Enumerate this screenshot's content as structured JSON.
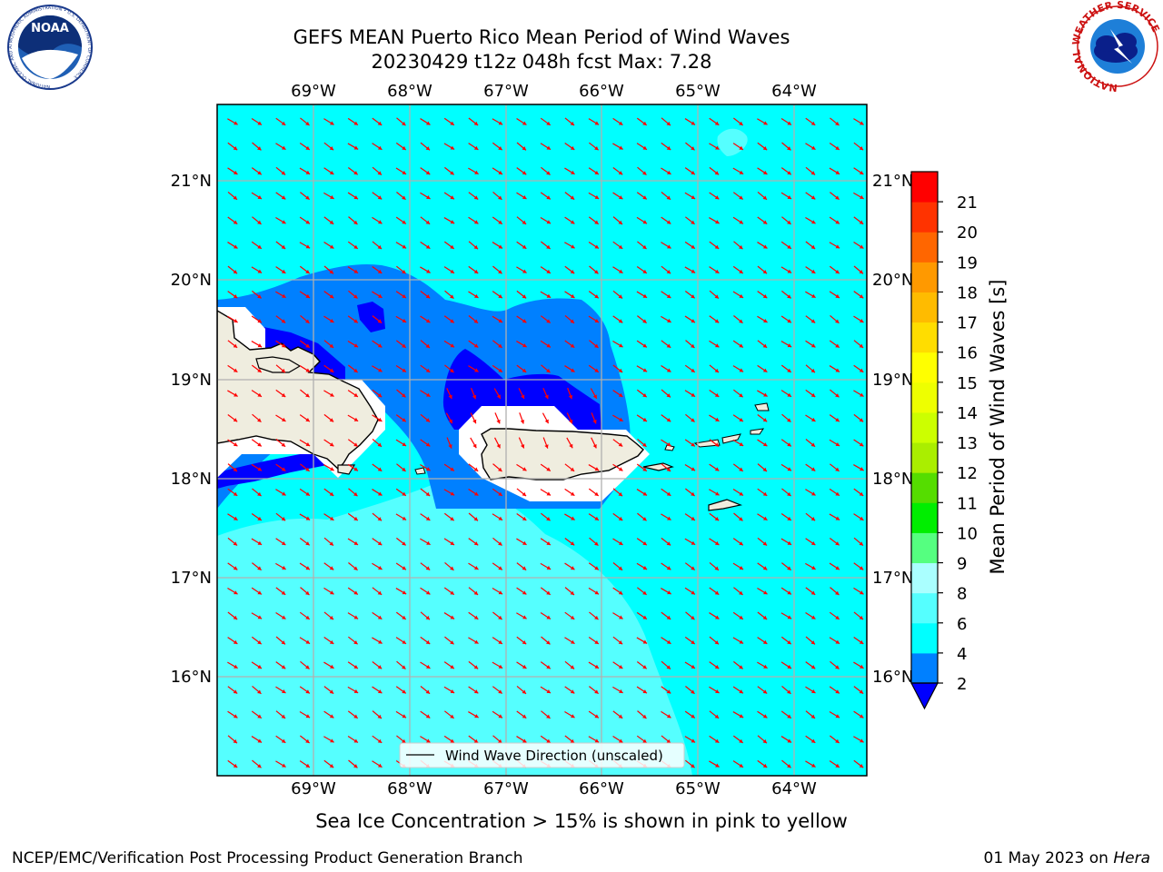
{
  "title_line1": "GEFS MEAN Puerto Rico Mean Period of Wind Waves",
  "title_line2": "20230429 t12z 048h fcst   Max: 7.28",
  "logos": {
    "left": {
      "icon": "noaa-logo",
      "text": "NOAA",
      "ring_text": "NATIONAL OCEANIC AND ATMOSPHERIC ADMINISTRATION • U.S. DEPARTMENT OF COMMERCE"
    },
    "right": {
      "icon": "nws-logo",
      "ring_text": "NATIONAL WEATHER SERVICE"
    }
  },
  "map": {
    "lon_labels": [
      "69°W",
      "68°W",
      "67°W",
      "66°W",
      "65°W",
      "64°W"
    ],
    "lat_labels": [
      "21°N",
      "20°N",
      "19°N",
      "18°N",
      "17°N",
      "16°N"
    ],
    "legend_label": "Wind Wave Direction (unscaled)",
    "arrow_color": "#ff0000",
    "land_color": "#efeddf",
    "colors": {
      "lt2": "#0000ff",
      "2_4": "#0080ff",
      "4_6": "#00ffff",
      "6_8": "#55ffff"
    }
  },
  "colorbar": {
    "label": "Mean Period of Wind Waves [s]",
    "ticks": [
      "2",
      "4",
      "6",
      "8",
      "9",
      "10",
      "11",
      "12",
      "13",
      "14",
      "15",
      "16",
      "17",
      "18",
      "19",
      "20",
      "21"
    ],
    "colors": [
      "#0080ff",
      "#00ffff",
      "#55ffff",
      "#aaffff",
      "#55ff80",
      "#00ee00",
      "#55dd00",
      "#aaee00",
      "#ccff00",
      "#eeff00",
      "#ffff00",
      "#ffdd00",
      "#ffbb00",
      "#ff9900",
      "#ff6600",
      "#ff3300",
      "#ff0000"
    ],
    "under_color": "#0000ff"
  },
  "subtitle": "Sea Ice Concentration > 15% is shown in pink to yellow",
  "footer_left": "NCEP/EMC/Verification Post Processing Product Generation Branch",
  "footer_right_date": "01 May 2023 on ",
  "footer_right_machine": "Hera"
}
